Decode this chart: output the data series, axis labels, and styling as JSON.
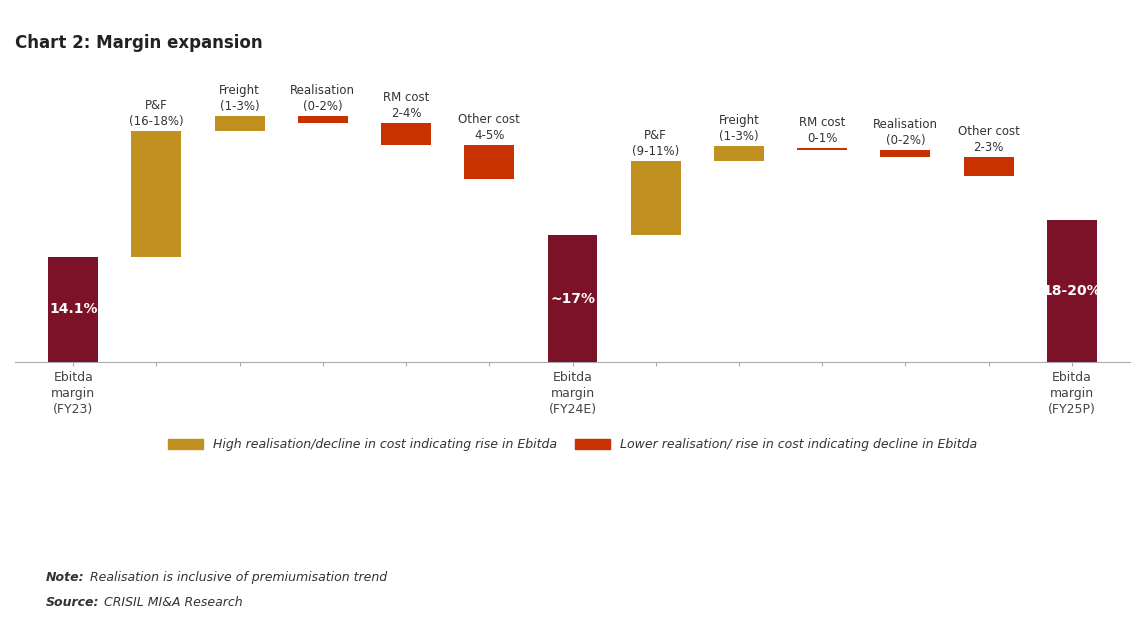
{
  "title": "Chart 2: Margin expansion",
  "dark_maroon": "#7B1228",
  "golden": "#C09020",
  "red_orange": "#C83200",
  "background": "#FFFFFF",
  "visual_bars": [
    [
      0,
      14.1,
      "#7B1228"
    ],
    [
      14.1,
      17.0,
      "#C09020"
    ],
    [
      31.1,
      2.0,
      "#C09020"
    ],
    [
      32.1,
      1.0,
      "#C83200"
    ],
    [
      29.1,
      3.0,
      "#C83200"
    ],
    [
      24.6,
      4.5,
      "#C83200"
    ],
    [
      0,
      17.0,
      "#7B1228"
    ],
    [
      17.0,
      10.0,
      "#C09020"
    ],
    [
      27.0,
      2.0,
      "#C09020"
    ],
    [
      28.5,
      0.3,
      "#C83200"
    ],
    [
      27.5,
      1.0,
      "#C83200"
    ],
    [
      25.0,
      2.5,
      "#C83200"
    ],
    [
      0,
      19.0,
      "#7B1228"
    ]
  ],
  "bar_labels": [
    "14.1%",
    "",
    "",
    "",
    "",
    "",
    "~17%",
    "",
    "",
    "",
    "",
    "",
    "18-20%"
  ],
  "above_labels": [
    "",
    "P&F\n(16-18%)",
    "Freight\n(1-3%)",
    "Realisation\n(0-2%)",
    "RM cost\n2-4%",
    "Other cost\n4-5%",
    "",
    "P&F\n(9-11%)",
    "Freight\n(1-3%)",
    "RM cost\n0-1%",
    "Realisation\n(0-2%)",
    "Other cost\n2-3%",
    ""
  ],
  "xtick_labels": [
    "Ebitda\nmargin\n(FY23)",
    "",
    "",
    "",
    "",
    "",
    "Ebitda\nmargin\n(FY24E)",
    "",
    "",
    "",
    "",
    "",
    "Ebitda\nmargin\n(FY25P)"
  ],
  "legend": [
    {
      "label": "High realisation/decline in cost indicating rise in Ebitda",
      "color": "#C09020"
    },
    {
      "label": "Lower realisation/ rise in cost indicating decline in Ebitda",
      "color": "#C83200"
    }
  ],
  "note_bold": "Note:",
  "note_italic": " Realisation is inclusive of premiumisation trend",
  "source_bold": "Source:",
  "source_italic": " CRISIL MI&A Research",
  "ylim": [
    0,
    40
  ],
  "bar_width": 0.6
}
